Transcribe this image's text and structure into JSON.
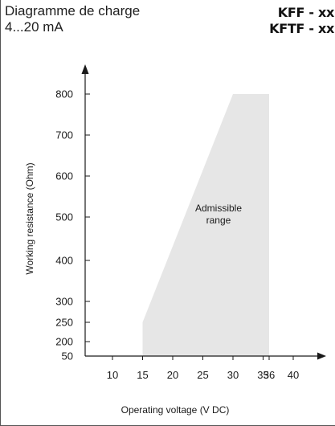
{
  "header": {
    "title": "Diagramme de charge",
    "subtitle": "4...20 mA",
    "models": [
      "KFF - xx",
      "KFTF - xx"
    ]
  },
  "colors": {
    "region_fill": "#e6e6e6",
    "axis": "#1a1a1a",
    "text": "#1a1a1a"
  },
  "chart_data": {
    "type": "area",
    "title": "",
    "xlabel": "Operating voltage  (V DC)",
    "ylabel": "Working resistance  (Ohm)",
    "x_ticks": [
      10,
      15,
      20,
      25,
      30,
      35,
      36,
      40
    ],
    "y_ticks": [
      50,
      200,
      250,
      300,
      400,
      500,
      600,
      700,
      800
    ],
    "y_scale": "piecewise",
    "xlim": [
      6,
      44
    ],
    "ylim": [
      30,
      850
    ],
    "grid": false,
    "region": {
      "label": [
        "Admissible",
        "range"
      ],
      "x": [
        15,
        15,
        30,
        36,
        36
      ],
      "y": [
        50,
        250,
        800,
        800,
        50
      ]
    }
  }
}
